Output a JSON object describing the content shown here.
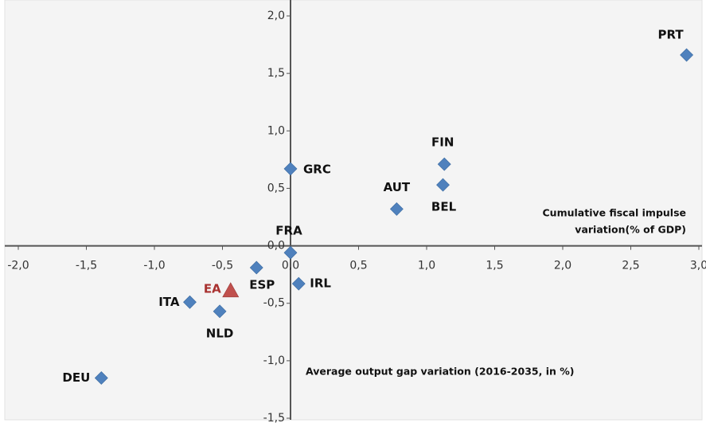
{
  "chart_data": {
    "type": "scatter",
    "x_label": "Average output gap variation (2016-2035, in %)",
    "y_label": [
      "Cumulative fiscal impulse",
      "variation(% of GDP)"
    ],
    "xlim": [
      -2.0,
      3.0
    ],
    "ylim": [
      -1.5,
      2.0
    ],
    "xticks": [
      {
        "value": -2.0,
        "label": "-2,0"
      },
      {
        "value": -1.5,
        "label": "-1,5"
      },
      {
        "value": -1.0,
        "label": "-1,0"
      },
      {
        "value": -0.5,
        "label": "-0,5"
      },
      {
        "value": 0,
        "label": "0,0"
      },
      {
        "value": 0.5,
        "label": "0,5"
      },
      {
        "value": 1.0,
        "label": "1,0"
      },
      {
        "value": 1.5,
        "label": "1,5"
      },
      {
        "value": 2.0,
        "label": "2,0"
      },
      {
        "value": 2.5,
        "label": "2,5"
      },
      {
        "value": 3.0,
        "label": "3,0"
      }
    ],
    "yticks": [
      {
        "value": -1.5,
        "label": "-1,5"
      },
      {
        "value": -1.0,
        "label": "-1,0"
      },
      {
        "value": -0.5,
        "label": "-0,5"
      },
      {
        "value": 0,
        "label": "0,0"
      },
      {
        "value": 0.5,
        "label": "0,5"
      },
      {
        "value": 1.0,
        "label": "1,0"
      },
      {
        "value": 1.5,
        "label": "1,5"
      },
      {
        "value": 2.0,
        "label": "2,0"
      }
    ],
    "series": [
      {
        "marker": "diamond",
        "color": "#4f81bd",
        "label_color": "#111111",
        "labels": [
          "PRT",
          "FIN",
          "BEL",
          "AUT",
          "GRC",
          "FRA",
          "IRL",
          "ESP",
          "ITA",
          "NLD",
          "DEU"
        ],
        "x": [
          2.91,
          1.13,
          1.12,
          0.78,
          0.0,
          0.0,
          0.06,
          -0.25,
          -0.74,
          -0.52,
          -1.39
        ],
        "values": [
          1.66,
          0.71,
          0.53,
          0.32,
          0.67,
          -0.06,
          -0.33,
          -0.19,
          -0.49,
          -0.57,
          -1.15
        ]
      },
      {
        "marker": "triangle",
        "color": "#c0504d",
        "label_color": "#a8312f",
        "labels": [
          "EA"
        ],
        "x": [
          -0.44
        ],
        "values": [
          -0.39
        ]
      }
    ]
  }
}
